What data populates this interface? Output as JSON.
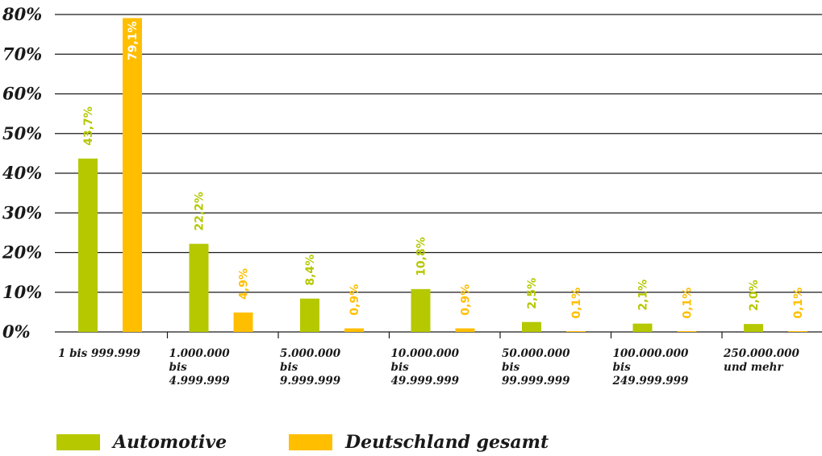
{
  "chart_data": {
    "type": "bar",
    "ylim": [
      0,
      80
    ],
    "yticks": [
      "0%",
      "10%",
      "20%",
      "30%",
      "40%",
      "50%",
      "60%",
      "70%",
      "80%"
    ],
    "categories": [
      [
        "1 bis 999.999"
      ],
      [
        "1.000.000",
        "bis",
        "4.999.999"
      ],
      [
        "5.000.000",
        "bis",
        "9.999.999"
      ],
      [
        "10.000.000",
        "bis",
        "49.999.999"
      ],
      [
        "50.000.000",
        "bis",
        "99.999.999"
      ],
      [
        "100.000.000",
        "bis",
        "249.999.999"
      ],
      [
        "250.000.000",
        "und mehr"
      ]
    ],
    "series": [
      {
        "name": "Automotive",
        "color": "#b5c800",
        "values": [
          43.7,
          22.2,
          8.4,
          10.8,
          2.5,
          2.1,
          2.0
        ],
        "labels": [
          "43,7%",
          "22,2%",
          "8,4%",
          "10,8%",
          "2,5%",
          "2,1%",
          "2,0%"
        ]
      },
      {
        "name": "Deutschland gesamt",
        "color": "#ffbf00",
        "values": [
          79.1,
          4.9,
          0.9,
          0.9,
          0.1,
          0.1,
          0.1
        ],
        "labels": [
          "79,1%",
          "4,9%",
          "0,9%",
          "0,9%",
          "0,1%",
          "0,1%",
          "0,1%"
        ]
      }
    ],
    "grid": true,
    "legend_position": "bottom"
  }
}
